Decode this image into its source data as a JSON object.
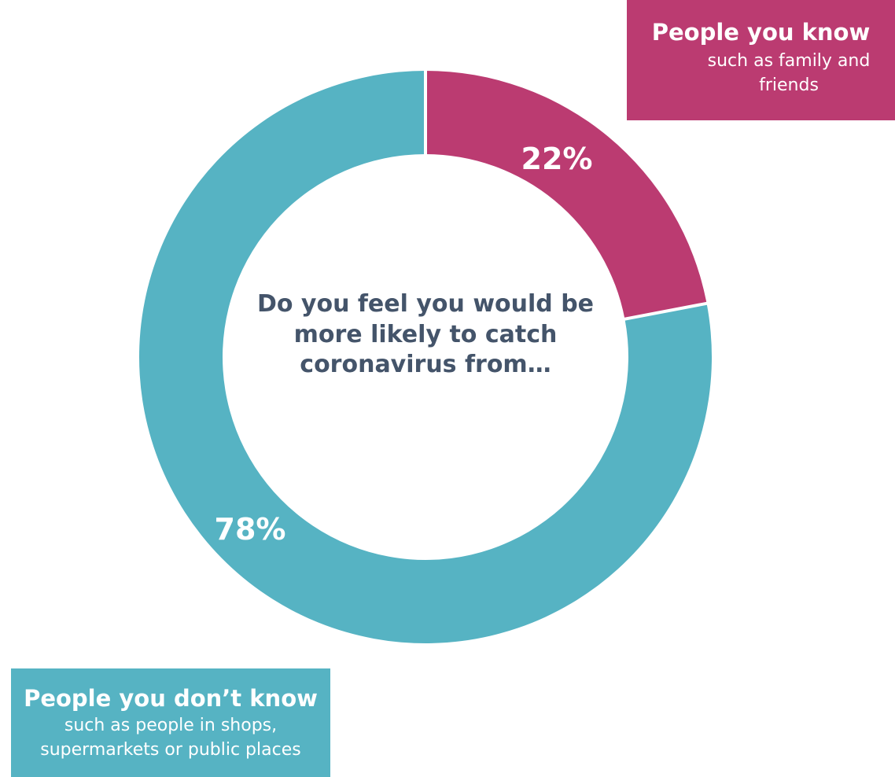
{
  "chart_data": {
    "type": "pie",
    "variant": "donut",
    "center_text": "Do you feel you would be more likely to catch coronavirus from…",
    "slices": [
      {
        "label": "People you know",
        "description": "such as family and friends",
        "value": 22,
        "value_label": "22%",
        "color": "#bb3b71"
      },
      {
        "label": "People you don’t know",
        "description": "such as people in shops, supermarkets or public places",
        "value": 78,
        "value_label": "78%",
        "color": "#56b3c3"
      }
    ]
  },
  "colors": {
    "background": "#ffffff",
    "question_text": "#44546a",
    "label_text": "#ffffff"
  }
}
